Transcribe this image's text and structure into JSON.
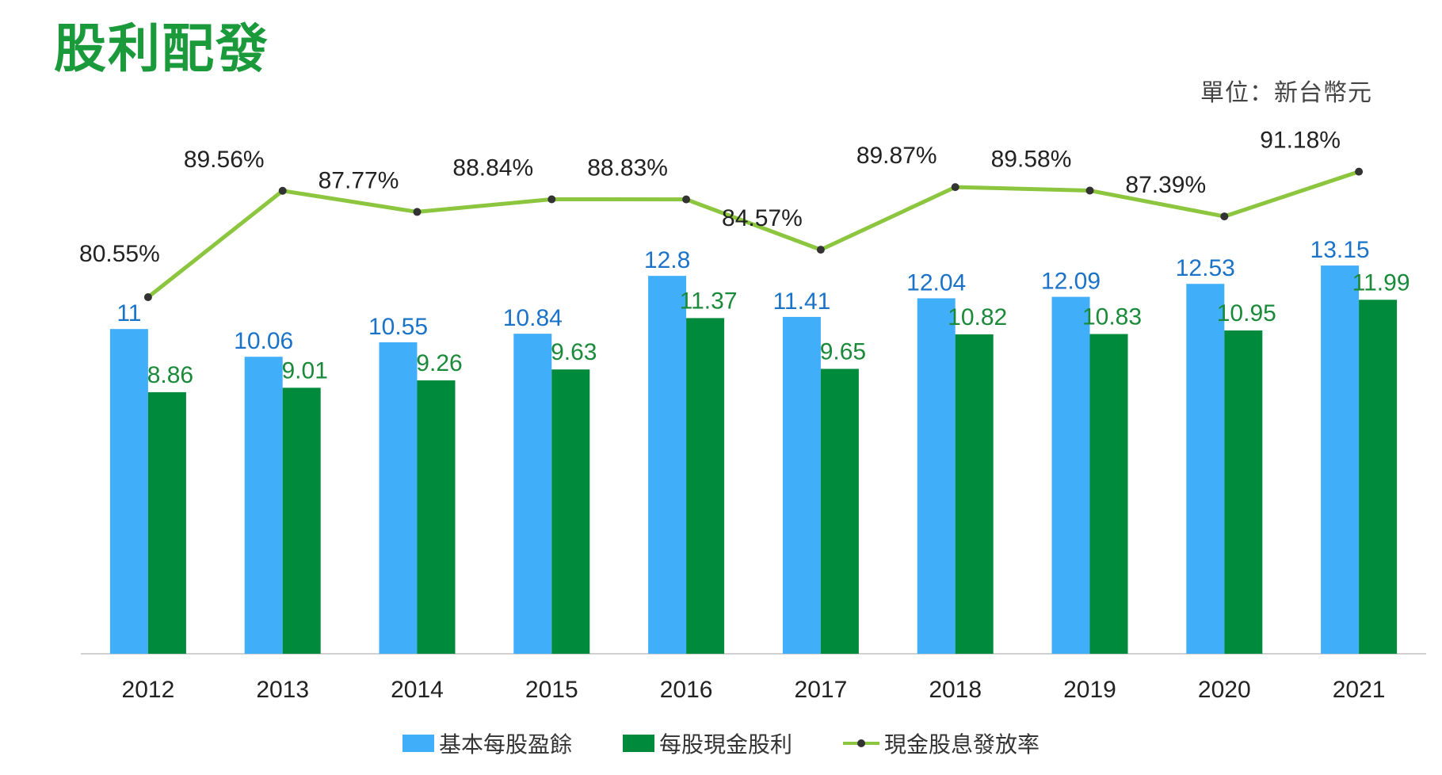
{
  "title": "股利配發",
  "unit": "單位：新台幣元",
  "colors": {
    "eps": "#41aef9",
    "dividend": "#008a3c",
    "payout": "#8cc63f",
    "title": "#1a9a3a"
  },
  "chart_data": {
    "type": "bar",
    "categories": [
      "2012",
      "2013",
      "2014",
      "2015",
      "2016",
      "2017",
      "2018",
      "2019",
      "2020",
      "2021"
    ],
    "series": [
      {
        "name": "基本每股盈餘",
        "type": "bar",
        "values": [
          11,
          10.06,
          10.55,
          10.84,
          12.8,
          11.41,
          12.04,
          12.09,
          12.53,
          13.15
        ],
        "labels": [
          "11",
          "10.06",
          "10.55",
          "10.84",
          "12.8",
          "11.41",
          "12.04",
          "12.09",
          "12.53",
          "13.15"
        ]
      },
      {
        "name": "每股現金股利",
        "type": "bar",
        "values": [
          8.86,
          9.01,
          9.26,
          9.63,
          11.37,
          9.65,
          10.82,
          10.83,
          10.95,
          11.99
        ],
        "labels": [
          "8.86",
          "9.01",
          "9.26",
          "9.63",
          "11.37",
          "9.65",
          "10.82",
          "10.83",
          "10.95",
          "11.99"
        ]
      },
      {
        "name": "現金股息發放率",
        "type": "line",
        "unit": "%",
        "values": [
          80.55,
          89.56,
          87.77,
          88.84,
          88.83,
          84.57,
          89.87,
          89.58,
          87.39,
          91.18
        ],
        "labels": [
          "80.55%",
          "89.56%",
          "87.77%",
          "88.84%",
          "88.83%",
          "84.57%",
          "89.87%",
          "89.58%",
          "87.39%",
          "91.18%"
        ]
      }
    ],
    "ylim": [
      0,
      15.3
    ],
    "ylim_secondary": [
      60,
      100
    ],
    "grid": false,
    "legend": "bottom"
  }
}
